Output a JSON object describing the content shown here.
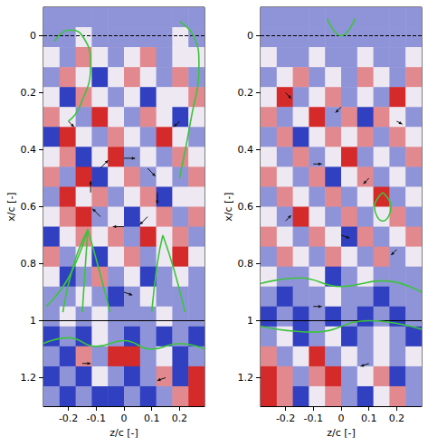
{
  "chart_data": [
    {
      "type": "heatmap",
      "xlabel": "z/c [-]",
      "ylabel": "x/c [-]",
      "xlim": [
        -0.29,
        0.29
      ],
      "ylim": [
        -0.1,
        1.3
      ],
      "xticks": [
        -0.2,
        -0.1,
        0,
        0.1,
        0.2
      ],
      "yticks": [
        0,
        0.2,
        0.4,
        0.6,
        0.8,
        1,
        1.2
      ],
      "grid": false,
      "color_range": [
        -2,
        2
      ],
      "cells": {
        "x_edges": [
          -0.29,
          -0.232,
          -0.174,
          -0.116,
          -0.058,
          0,
          0.058,
          0.116,
          0.174,
          0.232,
          0.29
        ],
        "y_edges": [
          -0.1,
          -0.03,
          0.04,
          0.11,
          0.18,
          0.25,
          0.32,
          0.39,
          0.46,
          0.53,
          0.6,
          0.67,
          0.74,
          0.81,
          0.88,
          0.95,
          1.02,
          1.09,
          1.16,
          1.23,
          1.3
        ],
        "values": [
          [
            -1,
            -1,
            -1,
            -1,
            -1,
            -1,
            -1,
            -1,
            -1,
            -1
          ],
          [
            -1,
            -1,
            0,
            -1,
            -1,
            -1,
            -1,
            -1,
            0,
            -1
          ],
          [
            0,
            -1,
            1,
            0,
            -1,
            0,
            1,
            -1,
            0,
            0
          ],
          [
            -1,
            1,
            0,
            -2,
            0,
            1,
            0,
            -1,
            1,
            -1
          ],
          [
            0,
            -2,
            1,
            0,
            -1,
            0,
            -2,
            0,
            0,
            1
          ],
          [
            1,
            0,
            -1,
            2,
            0,
            -1,
            1,
            0,
            -2,
            0
          ],
          [
            -2,
            2,
            0,
            -1,
            1,
            0,
            -1,
            2,
            0,
            -1
          ],
          [
            0,
            1,
            -2,
            0,
            2,
            -1,
            0,
            -1,
            1,
            0
          ],
          [
            1,
            -1,
            2,
            -2,
            0,
            1,
            -1,
            0,
            -1,
            1
          ],
          [
            -1,
            2,
            0,
            1,
            -1,
            0,
            1,
            -2,
            0,
            0
          ],
          [
            0,
            1,
            2,
            -1,
            0,
            -2,
            0,
            1,
            -1,
            1
          ],
          [
            -2,
            0,
            1,
            0,
            1,
            -1,
            2,
            0,
            1,
            -1
          ],
          [
            1,
            -1,
            0,
            -2,
            0,
            1,
            -1,
            0,
            2,
            0
          ],
          [
            0,
            -2,
            -1,
            1,
            -1,
            0,
            -2,
            -1,
            0,
            -1
          ],
          [
            -1,
            -1,
            0,
            -1,
            -2,
            -1,
            0,
            -1,
            -1,
            -1
          ],
          [
            -1,
            0,
            -1,
            0,
            -1,
            -1,
            -1,
            0,
            -1,
            -1
          ],
          [
            -2,
            -1,
            -2,
            0,
            -1,
            -2,
            -1,
            -2,
            -1,
            -2
          ],
          [
            -1,
            -2,
            1,
            -1,
            2,
            2,
            -1,
            0,
            -2,
            -1
          ],
          [
            -2,
            -1,
            -2,
            0,
            -1,
            -2,
            -1,
            1,
            -2,
            2
          ],
          [
            -1,
            -2,
            -1,
            -2,
            -2,
            -1,
            -2,
            -1,
            1,
            2
          ]
        ]
      },
      "lines": [
        {
          "value": 0,
          "line_style": "dashed"
        },
        {
          "value": 1,
          "line_style": "solid"
        }
      ],
      "streamlines": [
        [
          [
            -0.25,
            0.02
          ],
          [
            -0.2,
            -0.02
          ],
          [
            -0.15,
            0.0
          ],
          [
            -0.12,
            0.1
          ],
          [
            -0.16,
            0.25
          ],
          [
            -0.2,
            0.3
          ]
        ],
        [
          [
            -0.13,
            0.68
          ],
          [
            -0.18,
            0.8
          ],
          [
            -0.22,
            0.97
          ]
        ],
        [
          [
            -0.13,
            0.68
          ],
          [
            -0.14,
            0.82
          ],
          [
            -0.15,
            0.97
          ]
        ],
        [
          [
            -0.13,
            0.68
          ],
          [
            -0.09,
            0.82
          ],
          [
            -0.05,
            0.97
          ]
        ],
        [
          [
            -0.13,
            0.68
          ],
          [
            -0.2,
            0.85
          ],
          [
            -0.28,
            0.95
          ]
        ],
        [
          [
            0.14,
            0.7
          ],
          [
            0.12,
            0.8
          ],
          [
            0.1,
            0.97
          ]
        ],
        [
          [
            0.14,
            0.7
          ],
          [
            0.18,
            0.82
          ],
          [
            0.22,
            0.97
          ]
        ],
        [
          [
            -0.29,
            1.08
          ],
          [
            -0.2,
            1.06
          ],
          [
            -0.1,
            1.09
          ],
          [
            0,
            1.07
          ],
          [
            0.1,
            1.1
          ],
          [
            0.2,
            1.08
          ],
          [
            0.29,
            1.1
          ]
        ],
        [
          [
            0.2,
            -0.05
          ],
          [
            0.25,
            0.0
          ],
          [
            0.27,
            0.1
          ],
          [
            0.24,
            0.3
          ],
          [
            0.2,
            0.5
          ]
        ]
      ],
      "vectors": [
        [
          0.12,
          0.55,
          0,
          0.04
        ],
        [
          -0.12,
          0.55,
          0,
          -0.04
        ],
        [
          0,
          0.43,
          0.04,
          0
        ],
        [
          0,
          0.67,
          -0.04,
          0
        ],
        [
          0.085,
          0.465,
          0.028,
          0.028
        ],
        [
          -0.085,
          0.465,
          0.028,
          -0.028
        ],
        [
          0.085,
          0.635,
          -0.028,
          0.028
        ],
        [
          -0.085,
          0.635,
          -0.028,
          -0.028
        ],
        [
          -0.2,
          0.3,
          0.02,
          0.02
        ],
        [
          0.2,
          0.3,
          -0.02,
          0.02
        ],
        [
          0,
          0.9,
          0.03,
          0.01
        ],
        [
          -0.15,
          1.15,
          0.03,
          0
        ],
        [
          0.15,
          1.2,
          -0.03,
          0.01
        ]
      ]
    },
    {
      "type": "heatmap",
      "xlabel": "z/c [-]",
      "ylabel": "x/c [-]",
      "xlim": [
        -0.29,
        0.29
      ],
      "ylim": [
        -0.1,
        1.3
      ],
      "xticks": [
        -0.2,
        -0.1,
        0,
        0.1,
        0.2
      ],
      "yticks": [
        0,
        0.2,
        0.4,
        0.6,
        0.8,
        1,
        1.2
      ],
      "grid": false,
      "color_range": [
        -2,
        2
      ],
      "cells": {
        "x_edges": [
          -0.29,
          -0.232,
          -0.174,
          -0.116,
          -0.058,
          0,
          0.058,
          0.116,
          0.174,
          0.232,
          0.29
        ],
        "y_edges": [
          -0.1,
          -0.03,
          0.04,
          0.11,
          0.18,
          0.25,
          0.32,
          0.39,
          0.46,
          0.53,
          0.6,
          0.67,
          0.74,
          0.81,
          0.88,
          0.95,
          1.02,
          1.09,
          1.16,
          1.23,
          1.3
        ],
        "values": [
          [
            -1,
            -1,
            -1,
            -1,
            -1,
            -1,
            -1,
            -1,
            -1,
            -1
          ],
          [
            -1,
            -1,
            -1,
            -1,
            -1,
            -1,
            -1,
            -1,
            -1,
            -1
          ],
          [
            0,
            -1,
            -1,
            0,
            -1,
            -1,
            0,
            -1,
            -1,
            0
          ],
          [
            -1,
            0,
            1,
            -1,
            0,
            -1,
            1,
            0,
            -1,
            1
          ],
          [
            0,
            2,
            -1,
            0,
            1,
            -1,
            0,
            -1,
            2,
            0
          ],
          [
            1,
            -1,
            0,
            2,
            -1,
            1,
            -2,
            1,
            0,
            -1
          ],
          [
            -1,
            1,
            -2,
            0,
            1,
            0,
            1,
            -1,
            1,
            0
          ],
          [
            0,
            -1,
            1,
            -1,
            0,
            2,
            -1,
            0,
            -1,
            1
          ],
          [
            1,
            0,
            -1,
            1,
            -2,
            0,
            1,
            -1,
            0,
            -1
          ],
          [
            -1,
            1,
            0,
            -1,
            1,
            -1,
            0,
            2,
            -1,
            0
          ],
          [
            0,
            -1,
            2,
            0,
            -1,
            1,
            -1,
            0,
            1,
            -1
          ],
          [
            1,
            0,
            -1,
            1,
            0,
            -2,
            1,
            -1,
            0,
            1
          ],
          [
            -1,
            1,
            0,
            -1,
            1,
            0,
            -1,
            1,
            -1,
            0
          ],
          [
            0,
            -1,
            -1,
            0,
            -2,
            -1,
            0,
            -1,
            -1,
            -1
          ],
          [
            -1,
            -2,
            -1,
            -1,
            0,
            -1,
            -1,
            -2,
            -1,
            -1
          ],
          [
            -2,
            -1,
            -2,
            -1,
            -2,
            -1,
            -2,
            -1,
            -2,
            -1
          ],
          [
            -1,
            0,
            -2,
            -1,
            0,
            -2,
            -1,
            0,
            -1,
            -2
          ],
          [
            1,
            -1,
            0,
            2,
            -1,
            0,
            -1,
            0,
            -1,
            0
          ],
          [
            2,
            1,
            -1,
            1,
            2,
            -1,
            0,
            1,
            -2,
            -1
          ],
          [
            2,
            1,
            -2,
            0,
            1,
            -1,
            -2,
            0,
            1,
            -1
          ]
        ]
      },
      "lines": [
        {
          "value": 0,
          "line_style": "dashed"
        },
        {
          "value": 1,
          "line_style": "solid"
        }
      ],
      "streamlines": [
        [
          [
            -0.05,
            -0.06
          ],
          [
            0.0,
            0.0
          ],
          [
            0.05,
            -0.06
          ]
        ],
        [
          [
            -0.29,
            0.87
          ],
          [
            -0.15,
            0.85
          ],
          [
            0,
            0.88
          ],
          [
            0.15,
            0.86
          ],
          [
            0.29,
            0.9
          ]
        ],
        [
          [
            -0.29,
            1.02
          ],
          [
            -0.1,
            1.04
          ],
          [
            0.1,
            1.0
          ],
          [
            0.29,
            1.03
          ]
        ],
        [
          [
            0.15,
            0.55
          ],
          [
            0.18,
            0.6
          ],
          [
            0.15,
            0.65
          ],
          [
            0.12,
            0.6
          ],
          [
            0.15,
            0.55
          ]
        ]
      ],
      "vectors": [
        [
          -0.2,
          0.2,
          0.02,
          0.02
        ],
        [
          0,
          0.25,
          -0.02,
          0.02
        ],
        [
          0.2,
          0.3,
          0.02,
          0.01
        ],
        [
          -0.1,
          0.45,
          0.03,
          0
        ],
        [
          0.1,
          0.5,
          -0.02,
          0.02
        ],
        [
          -0.2,
          0.65,
          0.02,
          -0.02
        ],
        [
          0,
          0.7,
          0.03,
          0.01
        ],
        [
          0.2,
          0.75,
          -0.02,
          0.02
        ],
        [
          -0.1,
          0.95,
          0.03,
          0
        ],
        [
          0.1,
          1.15,
          -0.03,
          0.01
        ]
      ]
    }
  ]
}
